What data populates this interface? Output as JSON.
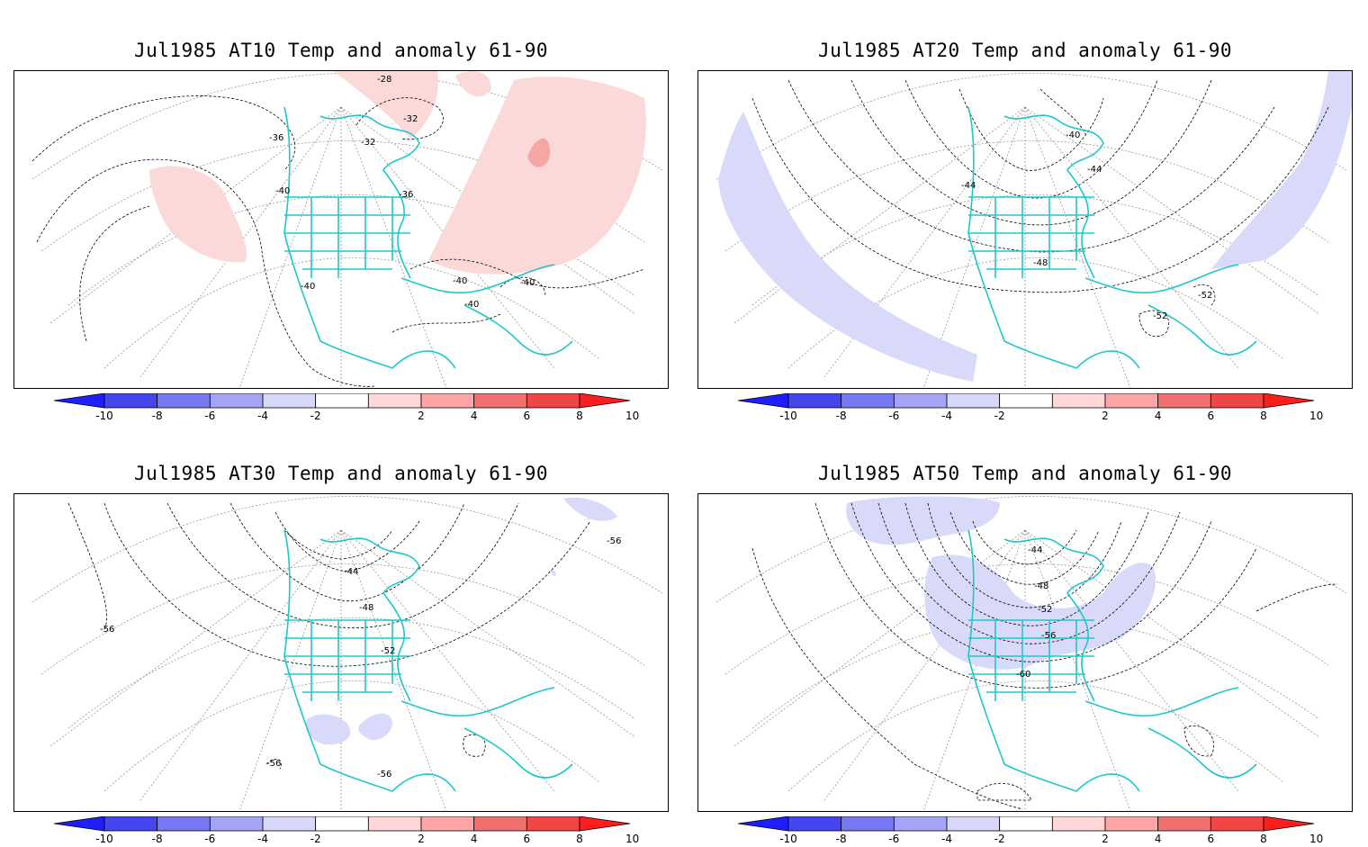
{
  "panels": [
    {
      "id": "at10",
      "title": "Jul1985 AT10 Temp and anomaly 61-90",
      "anomaly": "positive",
      "contour_labels": [
        "-28",
        "-32",
        "-32",
        "-36",
        "-36",
        "-40",
        "-40",
        "-40",
        "-40",
        "-40"
      ]
    },
    {
      "id": "at20",
      "title": "Jul1985 AT20 Temp and anomaly 61-90",
      "anomaly": "negative",
      "contour_labels": [
        "-40",
        "-44",
        "-44",
        "-48",
        "-52",
        "-52"
      ]
    },
    {
      "id": "at30",
      "title": "Jul1985 AT30 Temp and anomaly 61-90",
      "anomaly": "negative",
      "contour_labels": [
        "-44",
        "-48",
        "-52",
        "-56",
        "-56",
        "-56",
        "-56"
      ]
    },
    {
      "id": "at50",
      "title": "Jul1985 AT50 Temp and anomaly 61-90",
      "anomaly": "negative",
      "contour_labels": [
        "-44",
        "-48",
        "-52",
        "-56",
        "-60"
      ]
    }
  ],
  "colorbar": {
    "ticks": [
      "-10",
      "-8",
      "-6",
      "-4",
      "-2",
      "2",
      "4",
      "6",
      "8",
      "10"
    ],
    "colors": [
      "#1e1eff",
      "#4646f0",
      "#7878f0",
      "#a5a5f5",
      "#d7d7fa",
      "#ffffff",
      "#ffd7d7",
      "#ffa5a5",
      "#f07070",
      "#f04646",
      "#ff1e1e"
    ]
  },
  "colors": {
    "coastline": "#1ec8c8",
    "positive_anomaly": "#fcd9d9",
    "positive_anomaly_strong": "#f7a6a6",
    "negative_anomaly": "#d9d9fa",
    "contour": "#000000",
    "grid": "#888888"
  }
}
